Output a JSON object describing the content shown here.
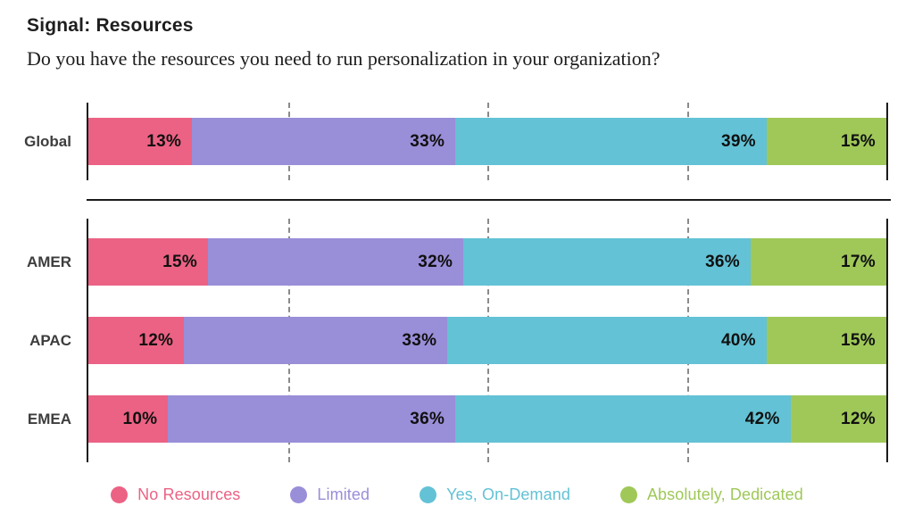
{
  "header": {
    "title": "Signal: Resources",
    "subtitle": "Do you have the resources you need to run personalization in your organization?"
  },
  "chart_data": {
    "type": "bar",
    "orientation": "horizontal",
    "stacked": true,
    "value_unit": "%",
    "xlim": [
      0,
      100
    ],
    "gridlines_at": [
      25,
      50,
      75
    ],
    "grid_style": "dashed",
    "legend_position": "bottom",
    "categories": [
      "Global",
      "AMER",
      "APAC",
      "EMEA"
    ],
    "category_groups": [
      [
        "Global"
      ],
      [
        "AMER",
        "APAC",
        "EMEA"
      ]
    ],
    "series": [
      {
        "name": "No Resources",
        "color": "#EC6284",
        "values": [
          13,
          15,
          12,
          10
        ]
      },
      {
        "name": "Limited",
        "color": "#998ED8",
        "values": [
          33,
          32,
          33,
          36
        ]
      },
      {
        "name": "Yes, On-Demand",
        "color": "#63C2D5",
        "values": [
          39,
          36,
          40,
          42
        ]
      },
      {
        "name": "Absolutely, Dedicated",
        "color": "#9FC858",
        "values": [
          15,
          17,
          15,
          12
        ]
      }
    ]
  },
  "style": {
    "axis_color": "#1b1b1b",
    "gridline_color": "#8a8a8a",
    "value_label_color": "#101010",
    "category_label_color": "#3d3d3d"
  }
}
